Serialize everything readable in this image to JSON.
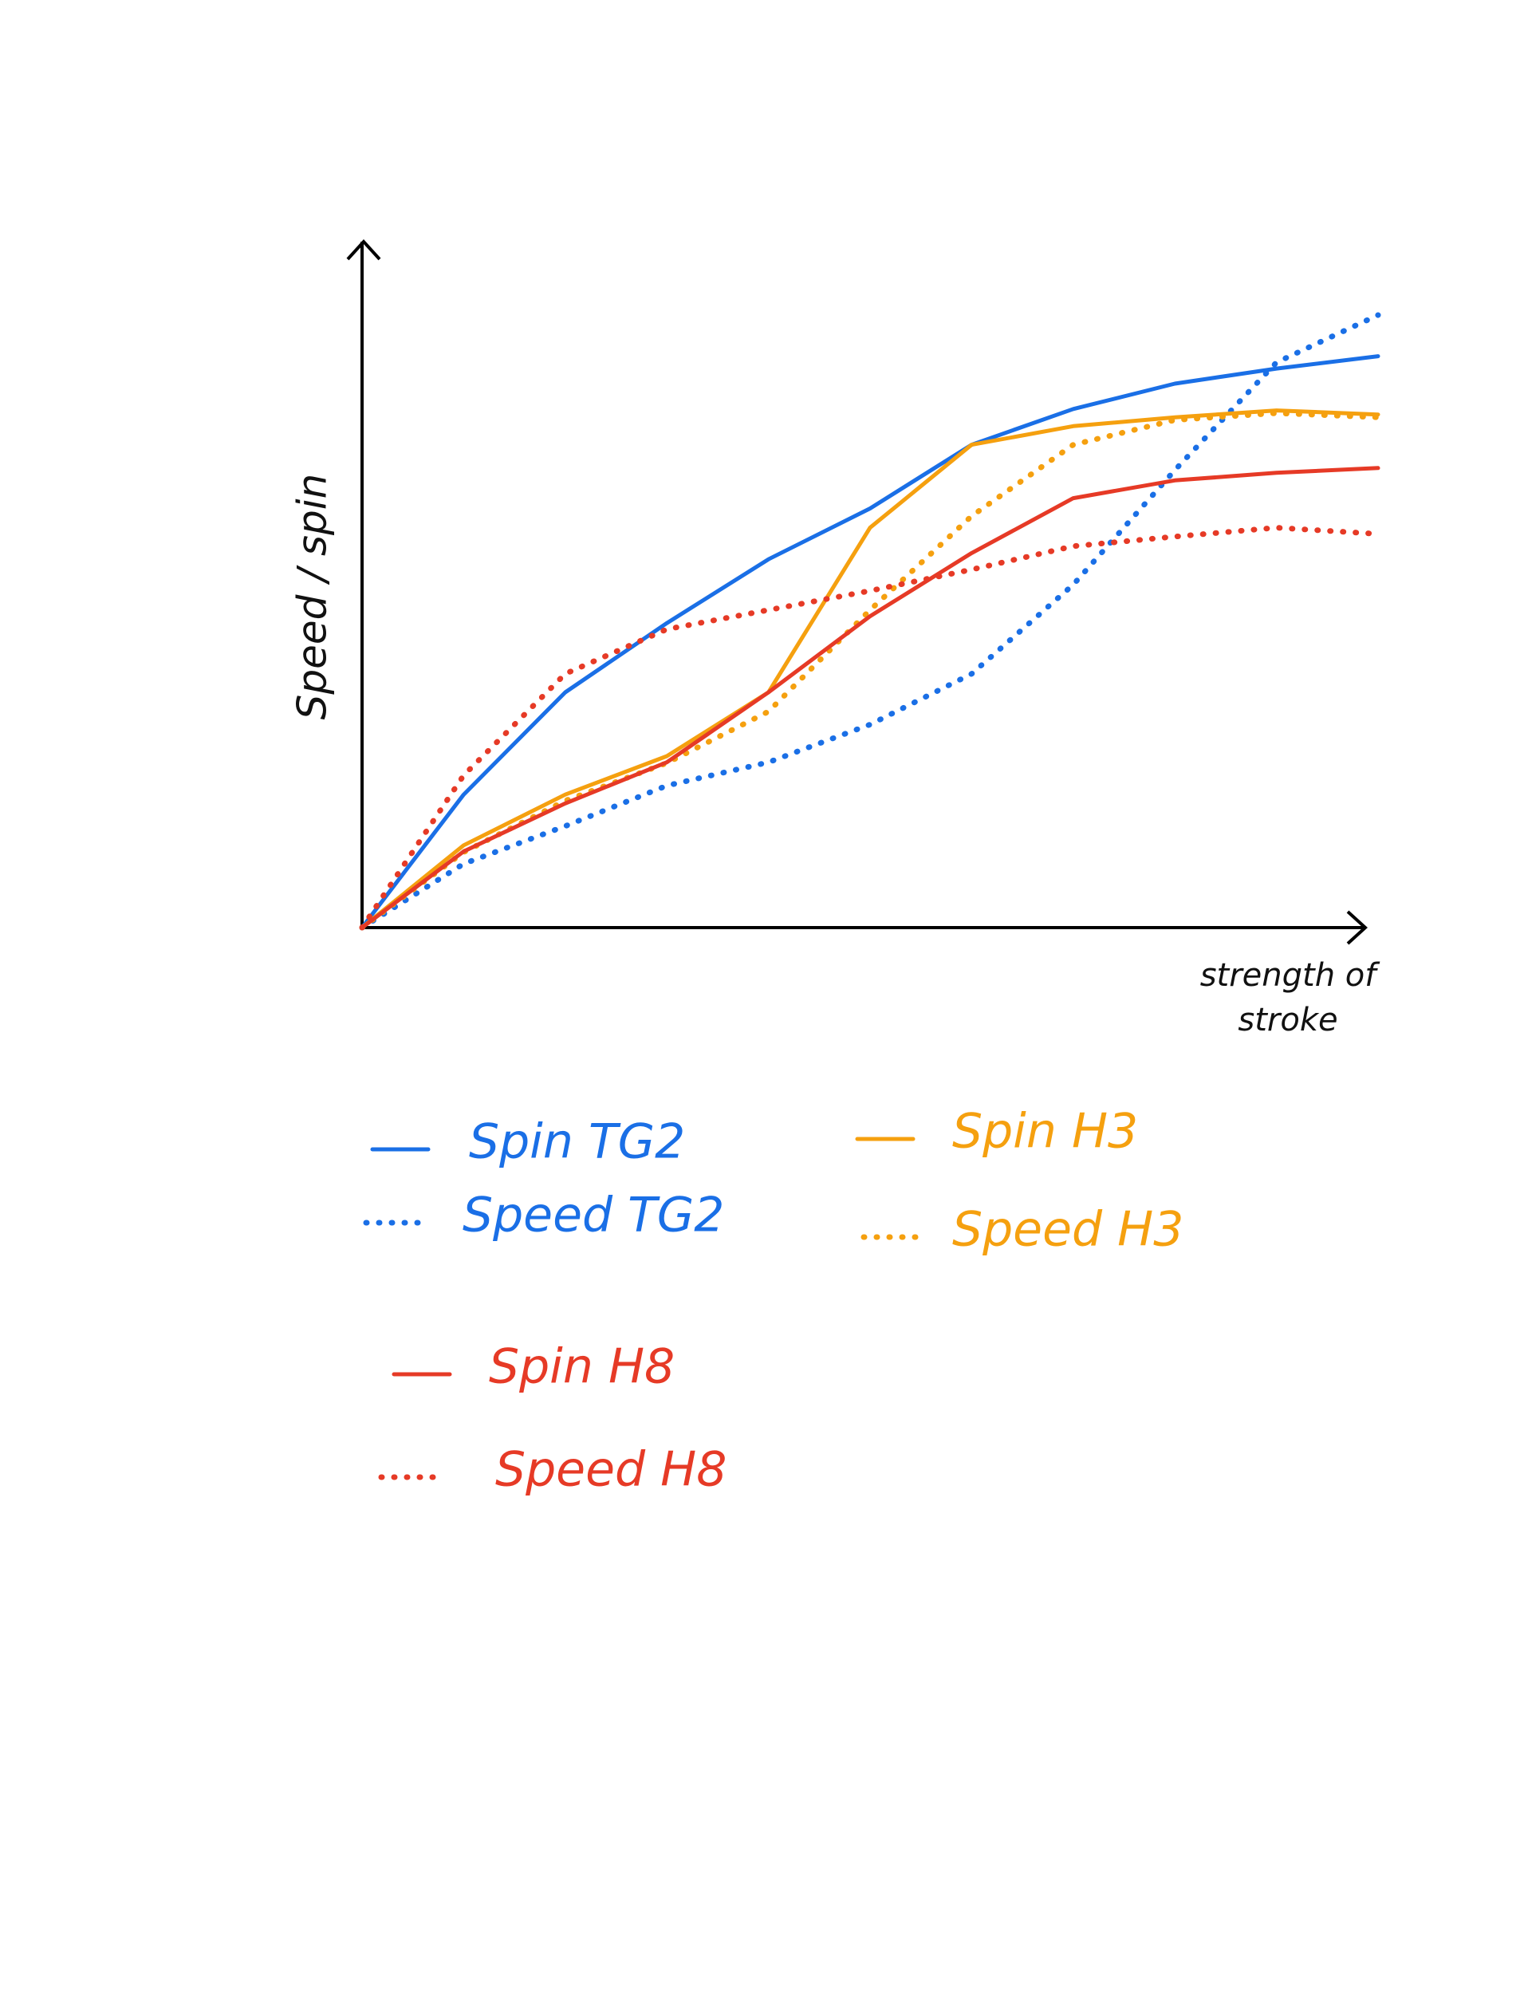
{
  "chart_data": {
    "type": "line",
    "y_label": "Speed / spin",
    "x_label": "strength of stroke",
    "x": [
      0,
      10,
      20,
      30,
      40,
      50,
      60,
      70,
      80,
      90,
      100
    ],
    "xlim": [
      0,
      100
    ],
    "ylim": [
      0,
      100
    ],
    "series": [
      {
        "name": "Spin TG2",
        "color": "#1a6fe6",
        "dash": "solid",
        "values": [
          0,
          19.4,
          34.3,
          44.4,
          53.7,
          61.1,
          70.4,
          75.6,
          79.3,
          81.5,
          83.3
        ]
      },
      {
        "name": "Speed TG2",
        "color": "#1a6fe6",
        "dash": "dotted",
        "values": [
          0,
          9.3,
          14.8,
          20.7,
          24.1,
          29.6,
          37.0,
          50.0,
          66.7,
          82.4,
          89.3
        ]
      },
      {
        "name": "Spin H3",
        "color": "#f5a00f",
        "dash": "solid",
        "values": [
          0,
          12.0,
          19.4,
          25.0,
          34.3,
          58.3,
          70.4,
          73.1,
          74.4,
          75.4,
          74.8
        ]
      },
      {
        "name": "Speed H3",
        "color": "#f5a00f",
        "dash": "dotted",
        "values": [
          0,
          11.0,
          18.5,
          24.0,
          31.5,
          46.3,
          60.0,
          70.4,
          74.0,
          75.0,
          74.4
        ]
      },
      {
        "name": "Spin H8",
        "color": "#e63a26",
        "dash": "solid",
        "values": [
          0,
          11.1,
          18.1,
          24.1,
          34.3,
          45.4,
          54.6,
          62.6,
          65.2,
          66.3,
          67.0
        ]
      },
      {
        "name": "Speed H8",
        "color": "#e63a26",
        "dash": "dotted",
        "values": [
          0,
          22.2,
          37.0,
          43.5,
          46.3,
          49.1,
          52.2,
          55.6,
          57.0,
          58.3,
          57.4
        ]
      }
    ]
  }
}
